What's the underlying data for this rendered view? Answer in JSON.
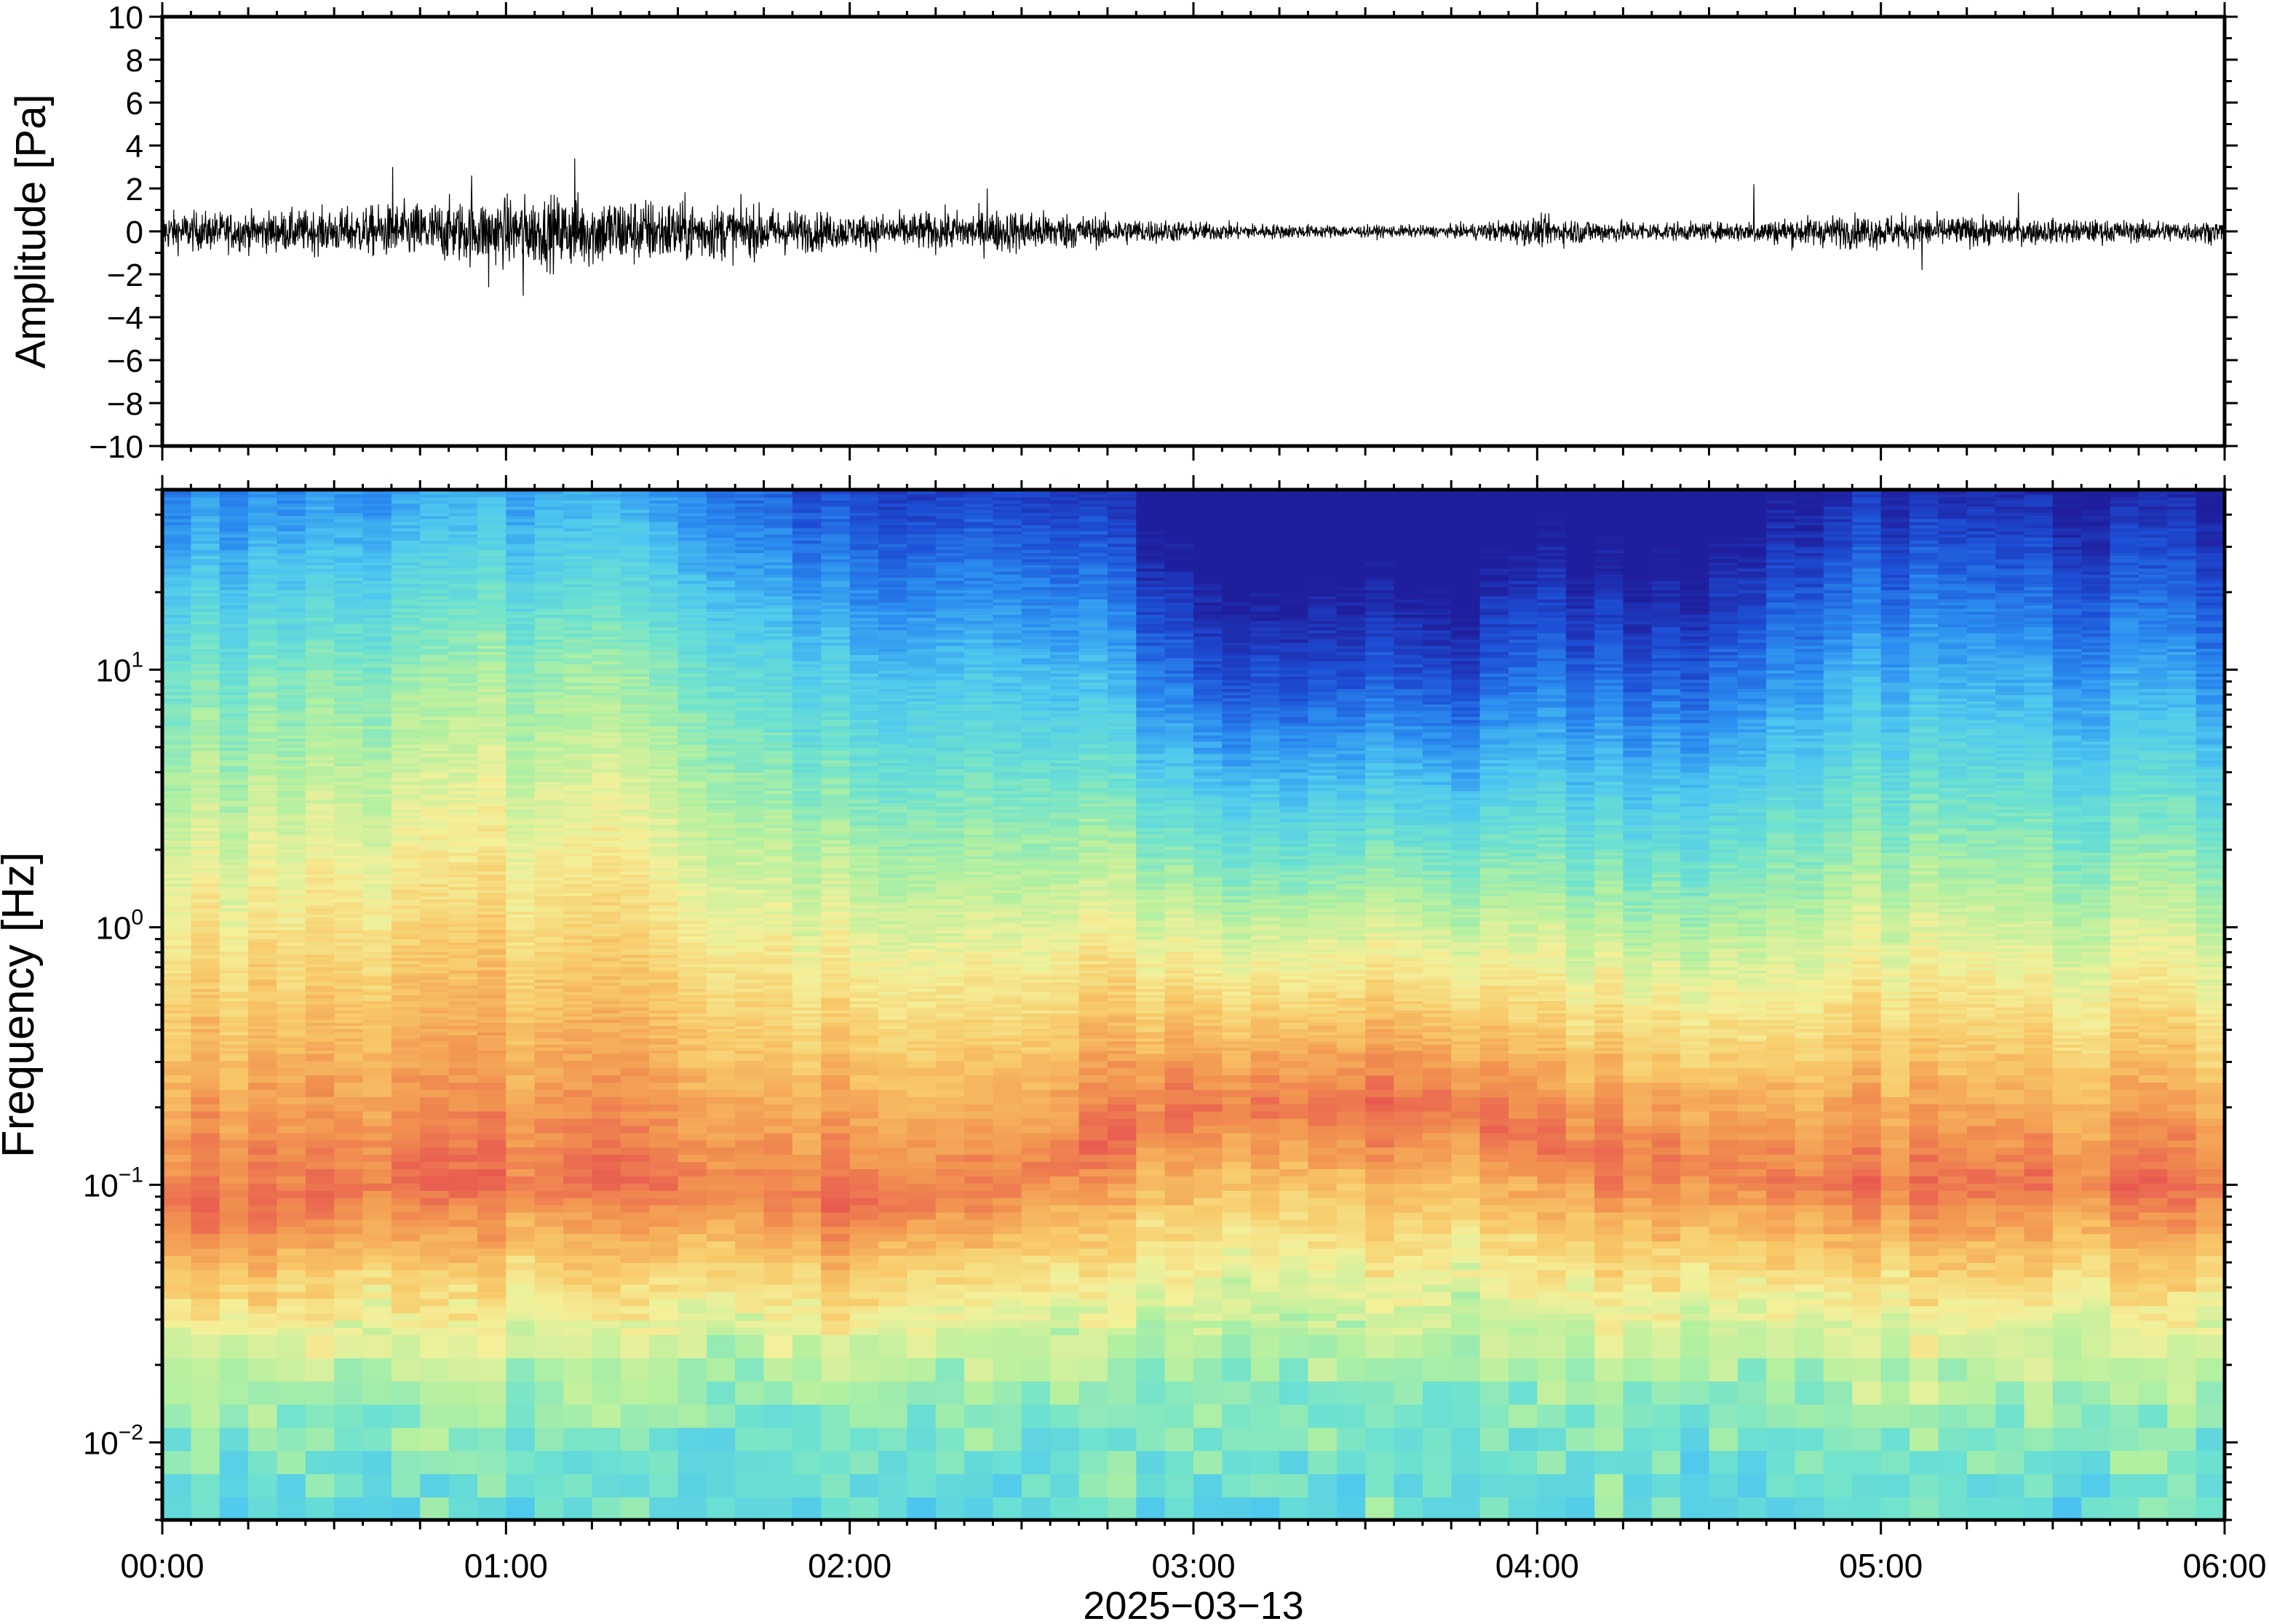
{
  "chart_data": [
    {
      "type": "line",
      "title": "",
      "ylabel": "Amplitude [Pa]",
      "ylim": [
        -10,
        10
      ],
      "yticks": [
        {
          "value": -10,
          "label": "−10"
        },
        {
          "value": -8,
          "label": "−8"
        },
        {
          "value": -6,
          "label": "−6"
        },
        {
          "value": -4,
          "label": "−4"
        },
        {
          "value": -2,
          "label": "−2"
        },
        {
          "value": 0,
          "label": "0"
        },
        {
          "value": 2,
          "label": "2"
        },
        {
          "value": 4,
          "label": "4"
        },
        {
          "value": 6,
          "label": "6"
        },
        {
          "value": 8,
          "label": "8"
        },
        {
          "value": 10,
          "label": "10"
        }
      ],
      "x_range_hours": [
        0,
        6
      ],
      "series": [
        {
          "color": "#000000",
          "envelope_hours": [
            0,
            0.25,
            0.5,
            0.75,
            1.0,
            1.25,
            1.5,
            1.75,
            2.0,
            2.25,
            2.5,
            2.75,
            3.0,
            3.25,
            3.5,
            3.75,
            4.0,
            4.25,
            4.5,
            4.75,
            5.0,
            5.25,
            5.5,
            5.75,
            6.0
          ],
          "envelope_pa": [
            0.8,
            0.8,
            0.9,
            1.2,
            1.4,
            1.5,
            1.3,
            1.0,
            0.7,
            0.8,
            0.9,
            0.6,
            0.4,
            0.3,
            0.25,
            0.25,
            0.6,
            0.45,
            0.35,
            0.6,
            0.7,
            0.6,
            0.5,
            0.45,
            0.45
          ],
          "peaks": [
            {
              "hour": 0.67,
              "value": 3.0
            },
            {
              "hour": 0.9,
              "value": 2.6
            },
            {
              "hour": 1.2,
              "value": 3.4
            },
            {
              "hour": 1.05,
              "value": -3.0
            },
            {
              "hour": 0.95,
              "value": -2.6
            },
            {
              "hour": 2.4,
              "value": 2.0
            },
            {
              "hour": 4.63,
              "value": 2.2
            },
            {
              "hour": 5.12,
              "value": -1.8
            },
            {
              "hour": 5.4,
              "value": 1.8
            }
          ]
        }
      ]
    },
    {
      "type": "heatmap",
      "title": "",
      "ylabel": "Frequency [Hz]",
      "yscale": "log",
      "ylim": [
        0.005,
        50
      ],
      "yticks": [
        {
          "value": 0.01,
          "base": "10",
          "exp": "−2"
        },
        {
          "value": 0.1,
          "base": "10",
          "exp": "−1"
        },
        {
          "value": 1,
          "base": "10",
          "exp": "0"
        },
        {
          "value": 10,
          "base": "10",
          "exp": "1"
        }
      ],
      "colormap": [
        "#1f1f9e",
        "#1d4fd6",
        "#2b8ef0",
        "#4fc8ef",
        "#6ee2cf",
        "#b3f0a0",
        "#f4f09a",
        "#f8c868",
        "#f29550",
        "#e85a50"
      ],
      "palette_note_hex": "#e85a50",
      "time_hours": [
        0,
        0.25,
        0.5,
        0.75,
        1.0,
        1.25,
        1.5,
        1.75,
        2.0,
        2.25,
        2.5,
        2.75,
        3.0,
        3.25,
        3.5,
        3.75,
        4.0,
        4.25,
        4.5,
        4.75,
        5.0,
        5.25,
        5.5,
        5.75,
        6.0
      ],
      "peak_frequency_hz": [
        0.08,
        0.08,
        0.09,
        0.1,
        0.1,
        0.1,
        0.1,
        0.09,
        0.08,
        0.09,
        0.1,
        0.15,
        0.2,
        0.2,
        0.2,
        0.2,
        0.15,
        0.12,
        0.12,
        0.1,
        0.1,
        0.1,
        0.1,
        0.1,
        0.1
      ],
      "relative_power_at_10hz": [
        0.45,
        0.45,
        0.48,
        0.5,
        0.52,
        0.52,
        0.48,
        0.42,
        0.32,
        0.34,
        0.35,
        0.28,
        0.12,
        0.1,
        0.1,
        0.08,
        0.18,
        0.12,
        0.15,
        0.25,
        0.28,
        0.28,
        0.26,
        0.24,
        0.24
      ]
    }
  ],
  "x_axis": {
    "ticks": [
      {
        "hour": 0,
        "label": "00:00"
      },
      {
        "hour": 1,
        "label": "01:00"
      },
      {
        "hour": 2,
        "label": "02:00"
      },
      {
        "hour": 3,
        "label": "03:00"
      },
      {
        "hour": 4,
        "label": "04:00"
      },
      {
        "hour": 5,
        "label": "05:00"
      },
      {
        "hour": 6,
        "label": "06:00"
      }
    ],
    "date_label": "2025−03−13"
  }
}
